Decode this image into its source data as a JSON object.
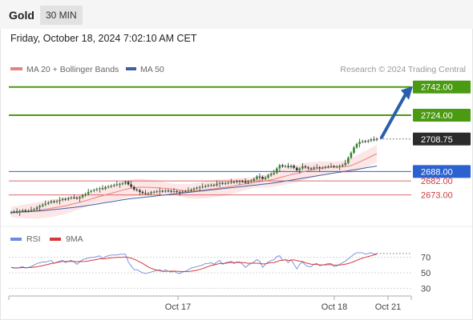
{
  "header": {
    "title": "Gold",
    "interval": "30 MIN"
  },
  "timestamp": "Friday, October 18, 2024 7:02:10 AM CET",
  "legend": {
    "ma20": "MA 20 + Bollinger Bands",
    "ma50": "MA 50",
    "credit": "Research © 2024 Trading Central"
  },
  "rsi_legend": {
    "rsi": "RSI",
    "ma": "9MA"
  },
  "colors": {
    "resistance": "#4a9a12",
    "support": "#cf3b3b",
    "pivot": "#2b62cf",
    "current_tag": "#2b2b2b",
    "bull_candle": "#2f8a2a",
    "bear_candle": "#333333",
    "ma20": "#e78080",
    "ma50": "#3f5fa3",
    "bollinger_fill": "#fde2e2",
    "rsi_line": "#6a8be0",
    "rsi_ma": "#d93838",
    "arrow": "#2a5fad"
  },
  "chart_data": {
    "type": "candlestick",
    "instrument": "Gold",
    "interval": "30 MIN",
    "ylim": [
      2656,
      2748
    ],
    "x_ticks": [
      "Oct 17",
      "Oct 18",
      "Oct 21"
    ],
    "levels": [
      {
        "price": 2742.0,
        "label": "2742.00",
        "kind": "resistance"
      },
      {
        "price": 2724.0,
        "label": "2724.00",
        "kind": "resistance"
      },
      {
        "price": 2688.0,
        "label": "2688.00",
        "kind": "pivot"
      },
      {
        "price": 2682.0,
        "label": "2682.00",
        "kind": "support"
      },
      {
        "price": 2673.0,
        "label": "2673.00",
        "kind": "support"
      }
    ],
    "current_price": {
      "value": 2708.75,
      "label": "2708.75"
    },
    "target_arrow": {
      "from": 2708.75,
      "to": 2742.0
    },
    "close": [
      2662.0,
      2662.5,
      2661.9,
      2662.8,
      2663.2,
      2662.7,
      2663.0,
      2663.5,
      2663.9,
      2665.1,
      2666.0,
      2666.8,
      2667.5,
      2668.2,
      2669.0,
      2668.6,
      2669.1,
      2669.8,
      2670.5,
      2670.2,
      2671.0,
      2671.4,
      2671.3,
      2670.8,
      2671.6,
      2672.8,
      2673.6,
      2675.0,
      2675.6,
      2676.2,
      2676.8,
      2677.3,
      2677.0,
      2678.1,
      2678.4,
      2678.9,
      2679.4,
      2679.8,
      2680.1,
      2680.4,
      2681.4,
      2679.8,
      2678.2,
      2676.5,
      2676.1,
      2675.0,
      2674.2,
      2673.8,
      2674.0,
      2674.7,
      2675.0,
      2675.3,
      2675.6,
      2675.4,
      2675.8,
      2675.6,
      2675.2,
      2675.4,
      2675.0,
      2674.8,
      2675.2,
      2675.4,
      2675.8,
      2676.4,
      2677.1,
      2677.6,
      2678.0,
      2678.4,
      2678.8,
      2679.2,
      2679.4,
      2679.2,
      2680.2,
      2680.7,
      2680.2,
      2680.6,
      2680.9,
      2681.3,
      2681.2,
      2681.8,
      2681.8,
      2681.6,
      2680.8,
      2681.6,
      2682.2,
      2683.3,
      2684.8,
      2684.6,
      2683.2,
      2684.2,
      2685.6,
      2686.5,
      2687.2,
      2690.0,
      2692.0,
      2691.2,
      2691.5,
      2690.8,
      2691.7,
      2690.4,
      2688.8,
      2689.9,
      2691.3,
      2690.6,
      2690.0,
      2689.8,
      2690.6,
      2690.7,
      2690.3,
      2690.5,
      2690.9,
      2691.2,
      2691.4,
      2691.0,
      2691.1,
      2691.6,
      2692.2,
      2693.5,
      2696.8,
      2700.0,
      2703.4,
      2705.6,
      2706.9,
      2707.4,
      2707.1,
      2707.7,
      2708.5,
      2708.2,
      2708.9
    ],
    "ma20": [
      2662.0,
      2662.25,
      2662.13,
      2662.3,
      2662.48,
      2662.52,
      2662.59,
      2662.7,
      2662.83,
      2663.06,
      2663.33,
      2663.61,
      2663.91,
      2664.22,
      2664.57,
      2664.83,
      2665.13,
      2665.45,
      2665.8,
      2666.1,
      2666.55,
      2667.0,
      2667.47,
      2667.87,
      2668.29,
      2668.8,
      2669.33,
      2669.9,
      2670.49,
      2671.04,
      2671.58,
      2672.1,
      2672.58,
      2673.08,
      2673.55,
      2674.07,
      2674.58,
      2675.08,
      2675.56,
      2676.07,
      2676.59,
      2677.01,
      2677.35,
      2677.63,
      2677.86,
      2677.97,
      2678.0,
      2677.94,
      2677.86,
      2677.79,
      2677.7,
      2677.6,
      2677.53,
      2677.39,
      2677.27,
      2677.1,
      2676.9,
      2676.68,
      2676.43,
      2676.15,
      2675.84,
      2675.62,
      2675.5,
      2675.5,
      2675.55,
      2675.68,
      2675.87,
      2676.1,
      2676.34,
      2676.56,
      2676.78,
      2676.98,
      2677.21,
      2677.48,
      2677.7,
      2677.95,
      2678.24,
      2678.54,
      2678.85,
      2679.2,
      2679.53,
      2679.84,
      2680.1,
      2680.36,
      2680.61,
      2680.9,
      2681.24,
      2681.55,
      2681.77,
      2682.02,
      2682.33,
      2682.69,
      2683.05,
      2683.53,
      2684.07,
      2684.55,
      2685.03,
      2685.51,
      2686.04,
      2686.47,
      2686.82,
      2687.24,
      2687.76,
      2688.21,
      2688.6,
      2688.93,
      2689.22,
      2689.53,
      2689.9,
      2690.21,
      2690.48,
      2690.7,
      2690.91,
      2690.96,
      2690.92,
      2690.92,
      2690.96,
      2691.1,
      2691.36,
      2691.85,
      2692.58,
      2693.37,
      2694.15,
      2694.99,
      2695.84,
      2696.74,
      2697.64,
      2698.52,
      2699.5
    ],
    "ma50": [
      2661.8,
      2661.9,
      2662.0,
      2662.1,
      2662.2,
      2662.3,
      2662.4,
      2662.5,
      2662.6,
      2662.7,
      2662.8,
      2662.95,
      2663.1,
      2663.3,
      2663.5,
      2663.7,
      2663.9,
      2664.1,
      2664.3,
      2664.5,
      2664.7,
      2664.9,
      2665.1,
      2665.3,
      2665.5,
      2665.75,
      2666.0,
      2666.3,
      2666.6,
      2666.9,
      2667.2,
      2667.5,
      2667.8,
      2668.1,
      2668.4,
      2668.7,
      2669.0,
      2669.3,
      2669.6,
      2669.9,
      2670.2,
      2670.45,
      2670.65,
      2670.85,
      2671.05,
      2671.25,
      2671.45,
      2671.65,
      2671.85,
      2672.05,
      2672.25,
      2672.45,
      2672.65,
      2672.85,
      2673.05,
      2673.25,
      2673.45,
      2673.65,
      2673.85,
      2674.05,
      2674.25,
      2674.45,
      2674.65,
      2674.85,
      2675.05,
      2675.25,
      2675.45,
      2675.65,
      2675.85,
      2676.05,
      2676.25,
      2676.45,
      2676.65,
      2676.85,
      2677.05,
      2677.25,
      2677.45,
      2677.65,
      2677.85,
      2678.05,
      2678.25,
      2678.45,
      2678.65,
      2678.85,
      2679.05,
      2679.25,
      2679.45,
      2679.65,
      2679.85,
      2680.05,
      2680.25,
      2680.5,
      2680.75,
      2681.0,
      2681.3,
      2681.6,
      2681.9,
      2682.2,
      2682.5,
      2682.8,
      2683.1,
      2683.4,
      2683.7,
      2684.0,
      2684.3,
      2684.6,
      2684.9,
      2685.2,
      2685.5,
      2685.8,
      2686.1,
      2686.4,
      2686.7,
      2687.0,
      2687.3,
      2687.6,
      2687.9,
      2688.2,
      2688.5,
      2688.8,
      2689.1,
      2689.4,
      2689.7,
      2690.0,
      2690.3,
      2690.6,
      2690.9,
      2691.2,
      2691.5
    ],
    "bollinger_band_width": 5.5,
    "rsi": {
      "ylim": [
        20,
        80
      ],
      "ticks": [
        70,
        50,
        30
      ],
      "rsi": [
        57,
        56,
        56,
        57,
        58,
        56,
        57,
        58,
        60,
        62,
        63,
        64,
        64,
        65,
        66,
        62,
        64,
        65,
        66,
        63,
        65,
        66,
        64,
        61,
        64,
        67,
        68,
        69,
        70,
        70,
        71,
        72,
        68,
        71,
        72,
        73,
        73,
        73,
        74,
        74,
        74,
        64,
        59,
        54,
        54,
        52,
        50,
        49,
        50,
        51,
        52,
        53,
        54,
        52,
        54,
        52,
        51,
        52,
        50,
        49,
        51,
        52,
        54,
        56,
        57,
        58,
        59,
        60,
        62,
        62,
        63,
        61,
        64,
        66,
        61,
        63,
        64,
        65,
        62,
        64,
        64,
        61,
        57,
        60,
        62,
        64,
        67,
        65,
        57,
        61,
        64,
        66,
        67,
        71,
        72,
        66,
        67,
        63,
        67,
        61,
        55,
        61,
        64,
        60,
        58,
        58,
        61,
        62,
        59,
        60,
        61,
        62,
        62,
        58,
        59,
        61,
        63,
        65,
        68,
        71,
        74,
        76,
        76,
        76,
        74,
        75,
        76,
        74,
        75
      ],
      "ma": [
        57,
        56.5,
        56.33,
        56.5,
        56.8,
        56.67,
        56.71,
        56.88,
        57.22,
        57.78,
        58.56,
        59.33,
        60.11,
        61.0,
        62.0,
        62.67,
        63.33,
        64.0,
        64.78,
        64.78,
        64.78,
        64.89,
        64.78,
        64.33,
        64.67,
        64.56,
        64.78,
        65.22,
        66.0,
        66.67,
        67.33,
        68.11,
        68.11,
        68.44,
        68.89,
        69.33,
        69.56,
        69.89,
        70.11,
        70.22,
        70.44,
        69.78,
        68.89,
        67.44,
        65.89,
        64.11,
        62.11,
        59.89,
        57.44,
        55.78,
        54.56,
        53.56,
        52.67,
        51.78,
        51.89,
        52.1,
        52.1,
        52.2,
        52.0,
        51.67,
        51.67,
        51.67,
        51.67,
        52.11,
        52.67,
        53.33,
        54.33,
        55.33,
        56.78,
        58.11,
        59.44,
        60.22,
        61.11,
        62.06,
        62.0,
        62.33,
        62.89,
        63.33,
        63.22,
        63.44,
        63.33,
        63.22,
        62.89,
        62.33,
        62.44,
        62.44,
        62.44,
        62.22,
        61.44,
        61.67,
        62.56,
        63.11,
        63.33,
        64.44,
        65.78,
        66.33,
        66.78,
        66.0,
        66.33,
        66.78,
        65.75,
        65.0,
        64.5,
        63.0,
        62.0,
        61.2,
        61.0,
        61.0,
        60.2,
        60.2,
        60.3,
        60.5,
        60.7,
        60.1,
        59.9,
        60.0,
        60.6,
        61.2,
        62.0,
        63.1,
        64.5,
        66.2,
        67.6,
        68.9,
        70.0,
        71.1,
        72.0,
        73.1,
        74.2
      ]
    }
  }
}
